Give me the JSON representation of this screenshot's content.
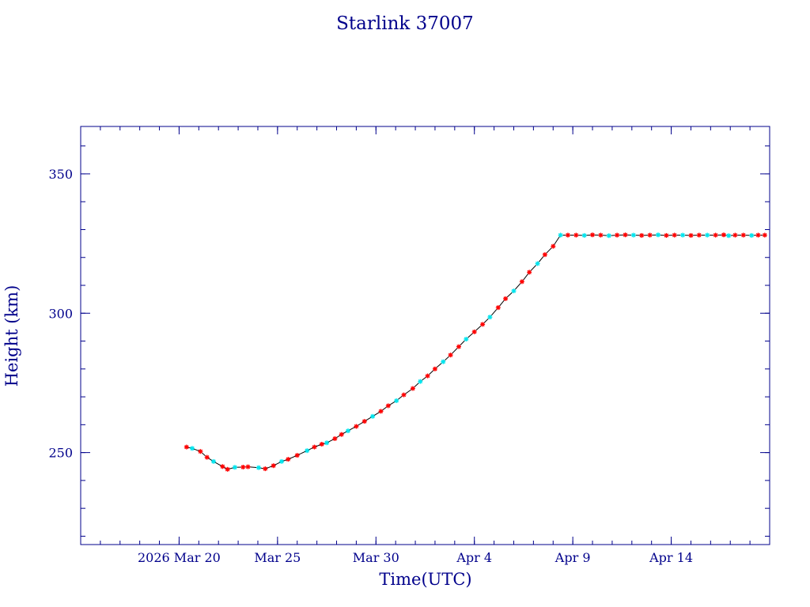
{
  "colors": {
    "axis": "#00008b",
    "line": "#000000",
    "marker_primary": "#ff0000",
    "marker_secondary": "#00e5ee",
    "background": "#ffffff"
  },
  "chart_data": {
    "type": "line",
    "title": "Starlink 37007",
    "xlabel": "Time(UTC)",
    "ylabel": "Height (km)",
    "x_is_date": true,
    "xlim": [
      "2026-03-15",
      "2026-04-19"
    ],
    "ylim": [
      217,
      367
    ],
    "xticks": [
      {
        "value": "2026-03-20",
        "label": "2026 Mar 20"
      },
      {
        "value": "2026-03-25",
        "label": "Mar 25"
      },
      {
        "value": "2026-03-30",
        "label": "Mar 30"
      },
      {
        "value": "2026-04-04",
        "label": "Apr  4"
      },
      {
        "value": "2026-04-09",
        "label": "Apr  9"
      },
      {
        "value": "2026-04-14",
        "label": "Apr 14"
      }
    ],
    "yticks": [
      250,
      300,
      350
    ],
    "grid": false,
    "marker_colors": [
      "red",
      "cyan"
    ],
    "series": [
      {
        "points": [
          [
            "2026-03-20 09:00",
            252.0
          ],
          [
            "2026-03-20 16:00",
            251.5
          ],
          [
            "2026-03-21 02:00",
            250.4
          ],
          [
            "2026-03-21 10:00",
            248.3
          ],
          [
            "2026-03-21 18:00",
            246.8
          ],
          [
            "2026-03-22 05:00",
            245.0
          ],
          [
            "2026-03-22 11:00",
            244.0
          ],
          [
            "2026-03-22 20:00",
            244.7
          ],
          [
            "2026-03-23 06:00",
            244.8
          ],
          [
            "2026-03-23 12:00",
            244.9
          ],
          [
            "2026-03-24 01:00",
            244.6
          ],
          [
            "2026-03-24 09:00",
            244.2
          ],
          [
            "2026-03-24 19:00",
            245.3
          ],
          [
            "2026-03-25 05:00",
            246.8
          ],
          [
            "2026-03-25 13:00",
            247.6
          ],
          [
            "2026-03-26 00:00",
            249.0
          ],
          [
            "2026-03-26 12:00",
            250.7
          ],
          [
            "2026-03-26 21:00",
            252.0
          ],
          [
            "2026-03-27 06:00",
            253.0
          ],
          [
            "2026-03-27 12:00",
            253.5
          ],
          [
            "2026-03-27 22:00",
            255.0
          ],
          [
            "2026-03-28 06:00",
            256.5
          ],
          [
            "2026-03-28 14:00",
            257.8
          ],
          [
            "2026-03-29 00:00",
            259.4
          ],
          [
            "2026-03-29 10:00",
            261.2
          ],
          [
            "2026-03-29 20:00",
            263.0
          ],
          [
            "2026-03-30 06:00",
            264.8
          ],
          [
            "2026-03-30 15:00",
            266.8
          ],
          [
            "2026-03-31 01:00",
            268.6
          ],
          [
            "2026-03-31 10:00",
            270.7
          ],
          [
            "2026-03-31 21:00",
            273.0
          ],
          [
            "2026-04-01 06:00",
            275.5
          ],
          [
            "2026-04-01 15:00",
            277.5
          ],
          [
            "2026-04-02 00:00",
            280.0
          ],
          [
            "2026-04-02 10:00",
            282.6
          ],
          [
            "2026-04-02 19:00",
            285.0
          ],
          [
            "2026-04-03 05:00",
            288.0
          ],
          [
            "2026-04-03 14:00",
            290.7
          ],
          [
            "2026-04-04 00:00",
            293.3
          ],
          [
            "2026-04-04 10:00",
            296.0
          ],
          [
            "2026-04-04 19:00",
            298.6
          ],
          [
            "2026-04-05 05:00",
            302.0
          ],
          [
            "2026-04-05 14:00",
            305.2
          ],
          [
            "2026-04-06 00:00",
            308.0
          ],
          [
            "2026-04-06 10:00",
            311.3
          ],
          [
            "2026-04-06 19:00",
            314.7
          ],
          [
            "2026-04-07 05:00",
            317.8
          ],
          [
            "2026-04-07 14:00",
            321.0
          ],
          [
            "2026-04-08 00:00",
            324.0
          ],
          [
            "2026-04-08 09:00",
            328.0
          ],
          [
            "2026-04-08 18:00",
            328.0
          ],
          [
            "2026-04-09 04:00",
            328.0
          ],
          [
            "2026-04-09 14:00",
            327.9
          ],
          [
            "2026-04-10 00:00",
            328.1
          ],
          [
            "2026-04-10 10:00",
            328.0
          ],
          [
            "2026-04-10 20:00",
            327.8
          ],
          [
            "2026-04-11 06:00",
            328.0
          ],
          [
            "2026-04-11 16:00",
            328.1
          ],
          [
            "2026-04-12 02:00",
            328.0
          ],
          [
            "2026-04-12 12:00",
            327.9
          ],
          [
            "2026-04-12 22:00",
            328.0
          ],
          [
            "2026-04-13 08:00",
            328.1
          ],
          [
            "2026-04-13 18:00",
            327.9
          ],
          [
            "2026-04-14 04:00",
            328.0
          ],
          [
            "2026-04-14 14:00",
            328.0
          ],
          [
            "2026-04-15 00:00",
            327.9
          ],
          [
            "2026-04-15 10:00",
            328.0
          ],
          [
            "2026-04-15 20:00",
            328.0
          ],
          [
            "2026-04-16 06:00",
            328.0
          ],
          [
            "2026-04-16 16:00",
            328.1
          ],
          [
            "2026-04-16 22:00",
            327.8
          ],
          [
            "2026-04-17 06:00",
            328.0
          ],
          [
            "2026-04-17 16:00",
            328.0
          ],
          [
            "2026-04-18 02:00",
            327.9
          ],
          [
            "2026-04-18 10:00",
            328.0
          ],
          [
            "2026-04-18 18:00",
            328.0
          ]
        ]
      }
    ]
  }
}
